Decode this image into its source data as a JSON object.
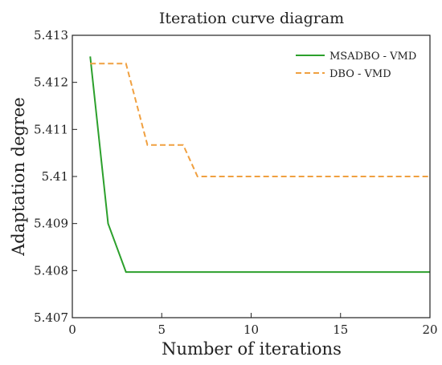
{
  "chart_data": {
    "type": "line",
    "title": "Iteration curve diagram",
    "xlabel": "Number of iterations",
    "ylabel": "Adaptation degree",
    "xlim": [
      0,
      20
    ],
    "ylim": [
      5.407,
      5.413
    ],
    "xticks": [
      0,
      5,
      10,
      15,
      20
    ],
    "xtick_labels": [
      "0",
      "5",
      "10",
      "15",
      "20"
    ],
    "yticks": [
      5.407,
      5.408,
      5.409,
      5.41,
      5.411,
      5.412,
      5.413
    ],
    "ytick_labels": [
      "5.407",
      "5.408",
      "5.409",
      "5.41",
      "5.411",
      "5.412",
      "5.413"
    ],
    "grid": false,
    "legend_position": "top-right",
    "series": [
      {
        "name": "MSADBO - VMD",
        "color": "#2ca02c",
        "style": "solid",
        "points": [
          [
            1,
            5.41255
          ],
          [
            2,
            5.409
          ],
          [
            3,
            5.40797
          ],
          [
            20,
            5.40797
          ]
        ]
      },
      {
        "name": "DBO - VMD",
        "color": "#f0a040",
        "style": "dashed",
        "points": [
          [
            1,
            5.4124
          ],
          [
            3,
            5.4124
          ],
          [
            4.2,
            5.41067
          ],
          [
            6.2,
            5.41067
          ],
          [
            7,
            5.41
          ],
          [
            20,
            5.41
          ]
        ]
      }
    ]
  }
}
